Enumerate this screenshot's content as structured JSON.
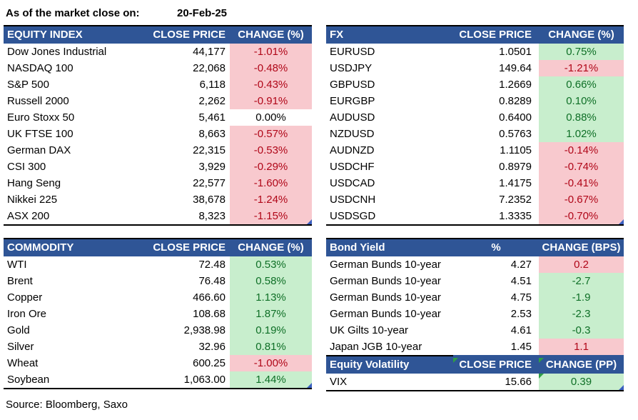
{
  "header": {
    "as_of_label": "As of the market close on:",
    "as_of_date": "20-Feb-25"
  },
  "footer": {
    "source": "Source: Bloomberg, Saxo"
  },
  "colors": {
    "table_header_bg": "#2F5596",
    "table_header_text": "#FFFFFF",
    "negative_bg": "#F8C9CE",
    "negative_text": "#B00618",
    "positive_bg": "#C8EECD",
    "positive_text": "#0E6F26",
    "border": "#000000",
    "corner_marker_blue": "#3A5FBF",
    "corner_marker_green": "#2E9E45"
  },
  "tables": [
    {
      "id": "equity",
      "title": "EQUITY INDEX",
      "value_header": "CLOSE PRICE",
      "change_header": "CHANGE (%)",
      "rows": [
        {
          "label": "Dow Jones Industrial",
          "value": "44,177",
          "change": "-1.01%",
          "style": "red"
        },
        {
          "label": "NASDAQ 100",
          "value": "22,068",
          "change": "-0.48%",
          "style": "red"
        },
        {
          "label": "S&P 500",
          "value": "6,118",
          "change": "-0.43%",
          "style": "red"
        },
        {
          "label": "Russell 2000",
          "value": "2,262",
          "change": "-0.91%",
          "style": "red"
        },
        {
          "label": "Euro Stoxx 50",
          "value": "5,461",
          "change": "0.00%",
          "style": "flat"
        },
        {
          "label": "UK FTSE 100",
          "value": "8,663",
          "change": "-0.57%",
          "style": "red"
        },
        {
          "label": "German DAX",
          "value": "22,315",
          "change": "-0.53%",
          "style": "red"
        },
        {
          "label": "CSI 300",
          "value": "3,929",
          "change": "-0.29%",
          "style": "red"
        },
        {
          "label": "Hang Seng",
          "value": "22,577",
          "change": "-1.60%",
          "style": "red"
        },
        {
          "label": "Nikkei 225",
          "value": "38,678",
          "change": "-1.24%",
          "style": "red"
        },
        {
          "label": "ASX 200",
          "value": "8,323",
          "change": "-1.15%",
          "style": "red"
        }
      ]
    },
    {
      "id": "fx",
      "title": "FX",
      "value_header": "CLOSE PRICE",
      "change_header": "CHANGE (%)",
      "rows": [
        {
          "label": "EURUSD",
          "value": "1.0501",
          "change": "0.75%",
          "style": "green"
        },
        {
          "label": "USDJPY",
          "value": "149.64",
          "change": "-1.21%",
          "style": "red"
        },
        {
          "label": "GBPUSD",
          "value": "1.2669",
          "change": "0.66%",
          "style": "green"
        },
        {
          "label": "EURGBP",
          "value": "0.8289",
          "change": "0.10%",
          "style": "green"
        },
        {
          "label": "AUDUSD",
          "value": "0.6400",
          "change": "0.88%",
          "style": "green"
        },
        {
          "label": "NZDUSD",
          "value": "0.5763",
          "change": "1.02%",
          "style": "green"
        },
        {
          "label": "AUDNZD",
          "value": "1.1105",
          "change": "-0.14%",
          "style": "red"
        },
        {
          "label": "USDCHF",
          "value": "0.8979",
          "change": "-0.74%",
          "style": "red"
        },
        {
          "label": "USDCAD",
          "value": "1.4175",
          "change": "-0.41%",
          "style": "red"
        },
        {
          "label": "USDCNH",
          "value": "7.2352",
          "change": "-0.67%",
          "style": "red"
        },
        {
          "label": "USDSGD",
          "value": "1.3335",
          "change": "-0.70%",
          "style": "red"
        }
      ]
    },
    {
      "id": "commodity",
      "title": "COMMODITY",
      "value_header": "CLOSE PRICE",
      "change_header": "CHANGE (%)",
      "rows": [
        {
          "label": "WTI",
          "value": "72.48",
          "change": "0.53%",
          "style": "green"
        },
        {
          "label": "Brent",
          "value": "76.48",
          "change": "0.58%",
          "style": "green"
        },
        {
          "label": "Copper",
          "value": "466.60",
          "change": "1.13%",
          "style": "green"
        },
        {
          "label": "Iron Ore",
          "value": "108.68",
          "change": "1.87%",
          "style": "green"
        },
        {
          "label": "Gold",
          "value": "2,938.98",
          "change": "0.19%",
          "style": "green"
        },
        {
          "label": "Silver",
          "value": "32.96",
          "change": "0.81%",
          "style": "green"
        },
        {
          "label": "Wheat",
          "value": "600.25",
          "change": "-1.00%",
          "style": "red"
        },
        {
          "label": "Soybean",
          "value": "1,063.00",
          "change": "1.44%",
          "style": "green"
        }
      ]
    },
    {
      "id": "bond",
      "title": "Bond Yield",
      "value_header": "%",
      "change_header": "CHANGE (BPS)",
      "rows": [
        {
          "label": "German Bunds 10-year",
          "value": "4.27",
          "change": "0.2",
          "style": "red"
        },
        {
          "label": "German Bunds 10-year",
          "value": "4.51",
          "change": "-2.7",
          "style": "green"
        },
        {
          "label": "German Bunds 10-year",
          "value": "4.75",
          "change": "-1.9",
          "style": "green"
        },
        {
          "label": "German Bunds 10-year",
          "value": "2.53",
          "change": "-2.3",
          "style": "green"
        },
        {
          "label": "UK Gilts 10-year",
          "value": "4.61",
          "change": "-0.3",
          "style": "green"
        },
        {
          "label": "Japan JGB 10-year",
          "value": "1.45",
          "change": "1.1",
          "style": "red"
        }
      ]
    },
    {
      "id": "volatility",
      "title": "Equity Volatility",
      "value_header": "CLOSE PRICE",
      "change_header": "CHANGE (PP)",
      "rows": [
        {
          "label": "VIX",
          "value": "15.66",
          "change": "0.39",
          "style": "green"
        }
      ]
    }
  ]
}
